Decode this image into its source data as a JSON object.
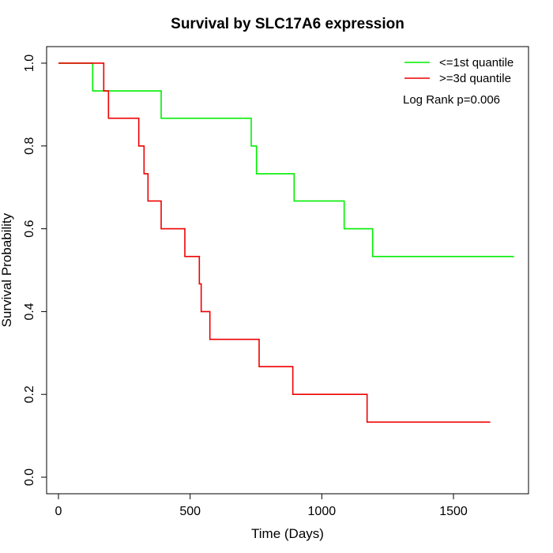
{
  "chart_data": {
    "type": "line",
    "title": "Survival by SLC17A6 expression",
    "xlabel": "Time (Days)",
    "ylabel": "Survival Probability",
    "xlim": [
      -45,
      1785
    ],
    "ylim": [
      -0.04,
      1.04
    ],
    "xticks": [
      0,
      500,
      1000,
      1500
    ],
    "yticks": [
      0.0,
      0.2,
      0.4,
      0.6,
      0.8,
      1.0
    ],
    "xtick_labels": [
      "0",
      "500",
      "1000",
      "1500"
    ],
    "ytick_labels": [
      "0.0",
      "0.2",
      "0.4",
      "0.6",
      "0.8",
      "1.0"
    ],
    "grid": false,
    "legend_position": "top-right",
    "annotation": "Log Rank p=0.006",
    "series": [
      {
        "name": "<=1st quantile",
        "color": "#00ee00",
        "step": true,
        "points": [
          [
            0,
            1.0
          ],
          [
            130,
            1.0
          ],
          [
            130,
            0.933
          ],
          [
            390,
            0.933
          ],
          [
            390,
            0.867
          ],
          [
            732,
            0.867
          ],
          [
            732,
            0.8
          ],
          [
            752,
            0.8
          ],
          [
            752,
            0.733
          ],
          [
            895,
            0.733
          ],
          [
            895,
            0.667
          ],
          [
            1085,
            0.667
          ],
          [
            1085,
            0.6
          ],
          [
            1193,
            0.6
          ],
          [
            1193,
            0.533
          ],
          [
            1730,
            0.533
          ]
        ]
      },
      {
        "name": ">=3d quantile",
        "color": "#ee0000",
        "step": true,
        "points": [
          [
            0,
            1.0
          ],
          [
            172,
            1.0
          ],
          [
            172,
            0.933
          ],
          [
            190,
            0.933
          ],
          [
            190,
            0.867
          ],
          [
            305,
            0.867
          ],
          [
            305,
            0.8
          ],
          [
            325,
            0.8
          ],
          [
            325,
            0.733
          ],
          [
            340,
            0.733
          ],
          [
            340,
            0.667
          ],
          [
            390,
            0.667
          ],
          [
            390,
            0.6
          ],
          [
            480,
            0.6
          ],
          [
            480,
            0.533
          ],
          [
            535,
            0.533
          ],
          [
            535,
            0.467
          ],
          [
            542,
            0.467
          ],
          [
            542,
            0.4
          ],
          [
            575,
            0.4
          ],
          [
            575,
            0.333
          ],
          [
            762,
            0.333
          ],
          [
            762,
            0.267
          ],
          [
            890,
            0.267
          ],
          [
            890,
            0.2
          ],
          [
            1172,
            0.2
          ],
          [
            1172,
            0.133
          ],
          [
            1640,
            0.133
          ]
        ]
      }
    ]
  }
}
